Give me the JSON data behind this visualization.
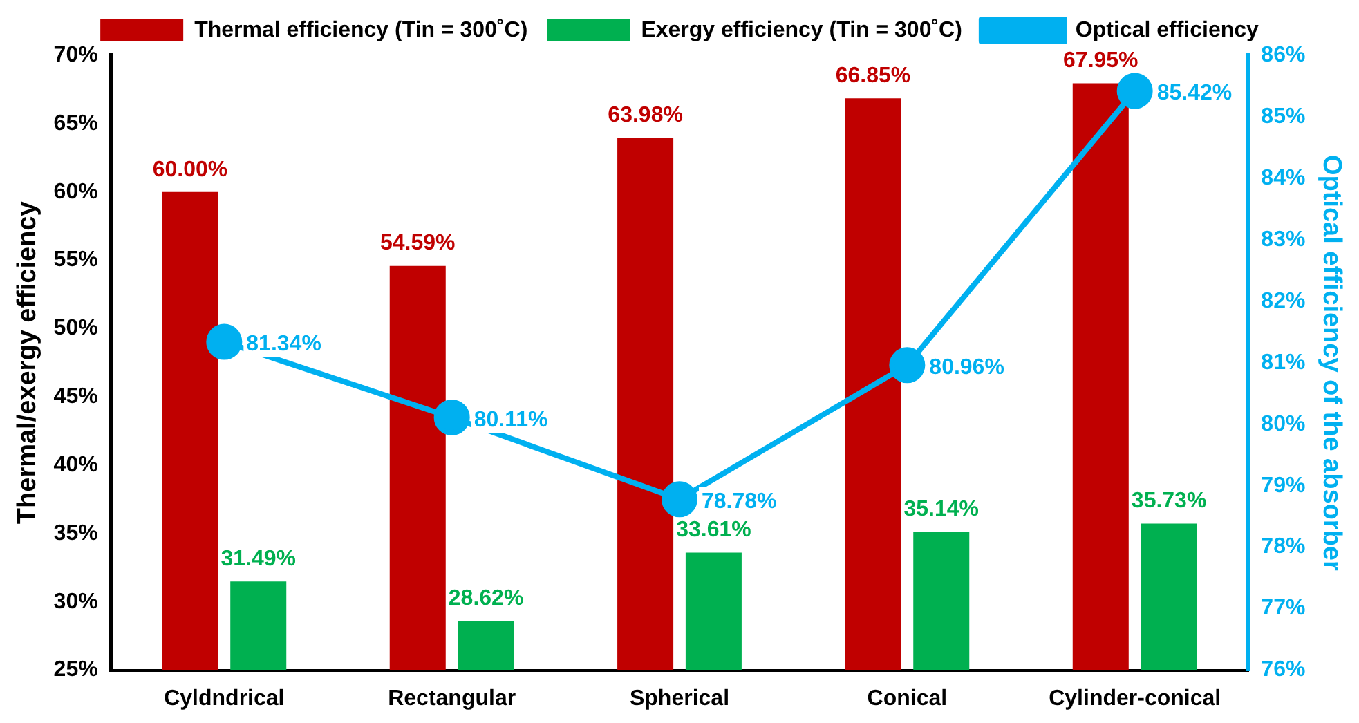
{
  "chart_data": {
    "type": "bar",
    "categories": [
      "Cyldndrical",
      "Rectangular",
      "Spherical",
      "Conical",
      "Cylinder-conical"
    ],
    "ylabel": "Thermal/exergy efficiency",
    "y2label": "Optical efficiency of the absorber",
    "ylim": [
      25,
      70
    ],
    "yticks": [
      {
        "value": 25,
        "label": "25%"
      },
      {
        "value": 30,
        "label": "30%"
      },
      {
        "value": 35,
        "label": "35%"
      },
      {
        "value": 40,
        "label": "40%"
      },
      {
        "value": 45,
        "label": "45%"
      },
      {
        "value": 50,
        "label": "50%"
      },
      {
        "value": 55,
        "label": "55%"
      },
      {
        "value": 60,
        "label": "60%"
      },
      {
        "value": 65,
        "label": "65%"
      },
      {
        "value": 70,
        "label": "70%"
      }
    ],
    "y2lim": [
      76,
      86
    ],
    "y2ticks": [
      {
        "value": 76,
        "label": "76%"
      },
      {
        "value": 77,
        "label": "77%"
      },
      {
        "value": 78,
        "label": "78%"
      },
      {
        "value": 79,
        "label": "79%"
      },
      {
        "value": 80,
        "label": "80%"
      },
      {
        "value": 81,
        "label": "81%"
      },
      {
        "value": 82,
        "label": "82%"
      },
      {
        "value": 83,
        "label": "83%"
      },
      {
        "value": 84,
        "label": "84%"
      },
      {
        "value": 85,
        "label": "85%"
      },
      {
        "value": 86,
        "label": "86%"
      }
    ],
    "legend": "top",
    "marker": "circle",
    "line_style": "solid",
    "series": [
      {
        "name": "Thermal efficiency (Tin = 300˚C)",
        "color": "#c00000",
        "values": [
          60.0,
          54.59,
          63.98,
          66.85,
          67.95
        ],
        "value_labels": [
          "60.00%",
          "54.59%",
          "63.98%",
          "66.85%",
          "67.95%"
        ]
      },
      {
        "name": "Exergy efficiency (Tin = 300˚C)",
        "color": "#00b050",
        "values": [
          31.49,
          28.62,
          33.61,
          35.14,
          35.73
        ],
        "value_labels": [
          "31.49%",
          "28.62%",
          "33.61%",
          "35.14%",
          "35.73%"
        ]
      },
      {
        "name": "Optical efficiency",
        "type": "line",
        "axis": "y2",
        "color": "#00b0f0",
        "values": [
          81.34,
          80.11,
          78.78,
          80.96,
          85.42
        ],
        "value_labels": [
          "81.34%",
          "80.11%",
          "78.78%",
          "80.96%",
          "85.42%"
        ]
      }
    ]
  }
}
